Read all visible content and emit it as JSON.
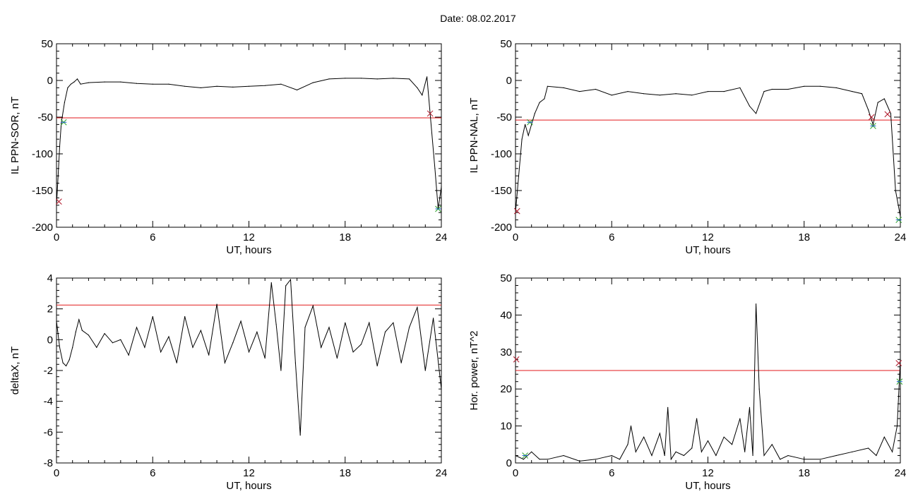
{
  "header": {
    "title": "Date:  08.02.2017"
  },
  "colors": {
    "line": "#000000",
    "threshold": "#e31a1c",
    "blue": "#1f5fd6",
    "green": "#2ca02c",
    "cross": "#b0182a"
  },
  "chart_data": [
    {
      "id": "p1",
      "type": "line",
      "xlabel": "UT, hours",
      "ylabel": "IL PPN-SOR, nT",
      "xlim": [
        0,
        24
      ],
      "ylim": [
        -200,
        50
      ],
      "xticks": [
        0,
        6,
        12,
        18,
        24
      ],
      "yticks": [
        50,
        0,
        -50,
        -100,
        -150,
        -200
      ],
      "threshold": -51,
      "x": [
        0,
        0.1,
        0.2,
        0.3,
        0.5,
        0.7,
        0.9,
        1.1,
        1.3,
        1.5,
        2,
        3,
        4,
        5,
        6,
        7,
        8,
        9,
        10,
        11,
        12,
        13,
        14,
        15,
        16,
        17,
        18,
        19,
        20,
        21,
        22,
        22.5,
        22.8,
        23.1,
        23.3,
        23.6,
        23.8,
        24
      ],
      "y": [
        -170,
        -130,
        -90,
        -58,
        -30,
        -10,
        -5,
        -2,
        2,
        -5,
        -3,
        -2,
        -2,
        -4,
        -5,
        -5,
        -8,
        -10,
        -8,
        -9,
        -8,
        -7,
        -5,
        -13,
        -3,
        2,
        3,
        3,
        2,
        3,
        2,
        -10,
        -20,
        5,
        -45,
        -120,
        -175,
        -145
      ],
      "markers": [
        {
          "x": 0.15,
          "y": -165,
          "kind": "x"
        },
        {
          "x": 0.45,
          "y": -57,
          "kind": "star"
        },
        {
          "x": 23.3,
          "y": -45,
          "kind": "x"
        },
        {
          "x": 23.8,
          "y": -175,
          "kind": "star"
        }
      ]
    },
    {
      "id": "p2",
      "type": "line",
      "xlabel": "UT, hours",
      "ylabel": "IL PPN-NAL, nT",
      "xlim": [
        0,
        24
      ],
      "ylim": [
        -200,
        50
      ],
      "xticks": [
        0,
        6,
        12,
        18,
        24
      ],
      "yticks": [
        50,
        0,
        -50,
        -100,
        -150,
        -200
      ],
      "threshold": -54,
      "x": [
        0,
        0.2,
        0.4,
        0.6,
        0.8,
        1.0,
        1.2,
        1.5,
        1.8,
        2,
        3,
        4,
        5,
        6,
        7,
        8,
        9,
        10,
        11,
        12,
        13,
        14,
        14.6,
        15,
        15.5,
        16,
        17,
        18,
        19,
        20,
        21,
        21.6,
        22,
        22.3,
        22.6,
        23,
        23.4,
        23.7,
        24
      ],
      "y": [
        -180,
        -130,
        -80,
        -60,
        -75,
        -60,
        -45,
        -30,
        -25,
        -8,
        -10,
        -15,
        -12,
        -20,
        -15,
        -18,
        -20,
        -18,
        -20,
        -15,
        -15,
        -10,
        -35,
        -45,
        -15,
        -12,
        -12,
        -8,
        -8,
        -10,
        -15,
        -18,
        -40,
        -60,
        -30,
        -25,
        -45,
        -150,
        -185
      ],
      "markers": [
        {
          "x": 0.1,
          "y": -178,
          "kind": "x"
        },
        {
          "x": 0.9,
          "y": -57,
          "kind": "star"
        },
        {
          "x": 22.2,
          "y": -50,
          "kind": "x"
        },
        {
          "x": 22.3,
          "y": -62,
          "kind": "star"
        },
        {
          "x": 23.2,
          "y": -46,
          "kind": "x"
        },
        {
          "x": 23.9,
          "y": -190,
          "kind": "star"
        }
      ]
    },
    {
      "id": "p3",
      "type": "line",
      "xlabel": "UT, hours",
      "ylabel": "deltaX, nT",
      "xlim": [
        0,
        24
      ],
      "ylim": [
        -8,
        4
      ],
      "xticks": [
        0,
        6,
        12,
        18,
        24
      ],
      "yticks": [
        4,
        2,
        0,
        -2,
        -4,
        -6,
        -8
      ],
      "threshold": 2.25,
      "x": [
        0,
        0.2,
        0.4,
        0.6,
        0.8,
        1.0,
        1.2,
        1.4,
        1.6,
        2,
        2.5,
        3,
        3.5,
        4,
        4.5,
        5,
        5.5,
        6,
        6.5,
        7,
        7.5,
        8,
        8.5,
        9,
        9.5,
        10,
        10.5,
        11,
        11.5,
        12,
        12.5,
        13,
        13.4,
        13.7,
        14,
        14.3,
        14.6,
        14.9,
        15.2,
        15.5,
        16,
        16.5,
        17,
        17.5,
        18,
        18.5,
        19,
        19.5,
        20,
        20.5,
        21,
        21.5,
        22,
        22.5,
        23,
        23.5,
        24
      ],
      "y": [
        1.2,
        -0.5,
        -1.5,
        -1.7,
        -1.3,
        -0.5,
        0.5,
        1.3,
        0.6,
        0.3,
        -0.5,
        0.4,
        -0.2,
        0,
        -1,
        0.8,
        -0.5,
        1.5,
        -0.8,
        0.2,
        -1.5,
        1.5,
        -0.5,
        0.6,
        -1.0,
        2.3,
        -1.5,
        -0.2,
        1.2,
        -0.8,
        0.5,
        -1.2,
        3.7,
        1.0,
        -2.0,
        3.5,
        3.9,
        -1.5,
        -6.2,
        0.8,
        2.2,
        -0.5,
        0.8,
        -1.2,
        1.1,
        -0.8,
        -0.3,
        1.1,
        -1.7,
        0.5,
        1.1,
        -1.5,
        0.8,
        2.1,
        -2.0,
        1.4,
        -3.2
      ]
    },
    {
      "id": "p4",
      "type": "line",
      "xlabel": "UT, hours",
      "ylabel": "Hor. power, nT^2",
      "xlim": [
        0,
        24
      ],
      "ylim": [
        0,
        50
      ],
      "xticks": [
        0,
        6,
        12,
        18,
        24
      ],
      "yticks": [
        50,
        40,
        30,
        20,
        10,
        0
      ],
      "threshold": 25,
      "x": [
        0,
        0.5,
        1,
        1.5,
        2,
        3,
        4,
        5,
        6,
        6.5,
        7,
        7.2,
        7.5,
        8,
        8.5,
        9,
        9.3,
        9.5,
        9.7,
        10,
        10.5,
        11,
        11.3,
        11.6,
        12,
        12.5,
        13,
        13.5,
        14,
        14.3,
        14.6,
        14.8,
        15,
        15.2,
        15.5,
        16,
        16.5,
        17,
        18,
        19,
        20,
        21,
        22,
        22.5,
        23,
        23.5,
        23.8,
        24
      ],
      "y": [
        2,
        1,
        3,
        1,
        1,
        2,
        0.5,
        1,
        2,
        1,
        5,
        10,
        3,
        7,
        2,
        8,
        2,
        15,
        1,
        3,
        2,
        4,
        12,
        3,
        6,
        2,
        7,
        5,
        12,
        3,
        15,
        2,
        43,
        20,
        2,
        5,
        1,
        2,
        1,
        1,
        2,
        3,
        4,
        2,
        7,
        3,
        10,
        28
      ],
      "markers": [
        {
          "x": 0.05,
          "y": 28,
          "kind": "x"
        },
        {
          "x": 0.6,
          "y": 2,
          "kind": "star"
        },
        {
          "x": 23.9,
          "y": 27,
          "kind": "x"
        },
        {
          "x": 23.95,
          "y": 22,
          "kind": "star"
        }
      ]
    }
  ]
}
